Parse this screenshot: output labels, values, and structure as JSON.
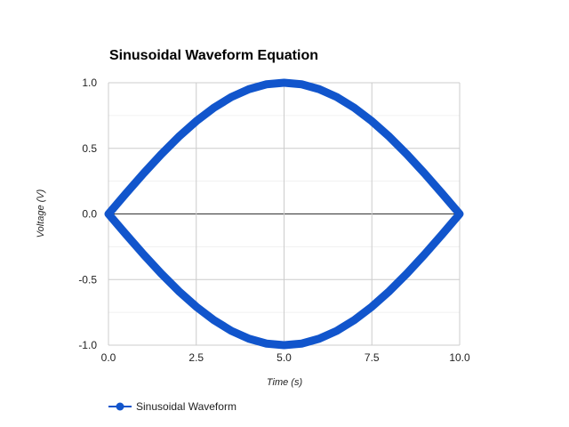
{
  "chart_data": {
    "type": "line",
    "title": "Sinusoidal Waveform Equation",
    "xlabel": "Time (s)",
    "ylabel": "Voltage (V)",
    "xlim": [
      0,
      10
    ],
    "ylim": [
      -1,
      1
    ],
    "x_ticks": [
      0,
      2.5,
      5,
      7.5,
      10
    ],
    "y_ticks": [
      1,
      0.5,
      0,
      -0.5,
      -1
    ],
    "x_tick_labels": [
      "0.0",
      "2.5",
      "5.0",
      "7.5",
      "10.0"
    ],
    "y_tick_labels": [
      "1.0",
      "0.5",
      "0.0",
      "-0.5",
      "-1.0"
    ],
    "grid": true,
    "legend_position": "bottom-left",
    "series": [
      {
        "name": "Sinusoidal Waveform",
        "color": "#1155cc",
        "x": [
          0,
          0.5,
          1,
          1.5,
          2,
          2.5,
          3,
          3.5,
          4,
          4.5,
          5,
          5.5,
          6,
          6.5,
          7,
          7.5,
          8,
          8.5,
          9,
          9.5,
          10,
          9.5,
          9,
          8.5,
          8,
          7.5,
          7,
          6.5,
          6,
          5.5,
          5,
          4.5,
          4,
          3.5,
          3,
          2.5,
          2,
          1.5,
          1,
          0.5,
          0
        ],
        "y": [
          0,
          0.156,
          0.309,
          0.454,
          0.588,
          0.707,
          0.809,
          0.891,
          0.951,
          0.988,
          1,
          0.988,
          0.951,
          0.891,
          0.809,
          0.707,
          0.588,
          0.454,
          0.309,
          0.156,
          0,
          -0.156,
          -0.309,
          -0.454,
          -0.588,
          -0.707,
          -0.809,
          -0.891,
          -0.951,
          -0.988,
          -1,
          -0.988,
          -0.951,
          -0.891,
          -0.809,
          -0.707,
          -0.588,
          -0.454,
          -0.309,
          -0.156,
          0
        ]
      }
    ]
  }
}
